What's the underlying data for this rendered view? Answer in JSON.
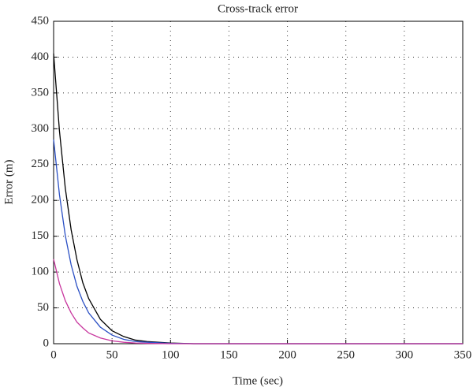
{
  "chart_data": {
    "type": "line",
    "title": "Cross-track error",
    "x_label": "Time (sec)",
    "y_label": "Error (m)",
    "x": [
      0,
      5,
      10,
      15,
      20,
      25,
      30,
      40,
      50,
      60,
      70,
      80,
      100,
      120,
      150,
      200,
      250,
      300,
      350
    ],
    "series": [
      {
        "color": "#000000",
        "values": [
          405,
          297,
          217,
          159,
          117,
          85,
          63,
          34,
          18,
          10,
          5,
          3,
          1,
          0,
          0,
          0,
          0,
          0,
          0
        ]
      },
      {
        "color": "#2a4fc4",
        "values": [
          285,
          208,
          151,
          110,
          80,
          59,
          43,
          23,
          12,
          6,
          3,
          2,
          0.5,
          0,
          0,
          0,
          0,
          0,
          0
        ]
      },
      {
        "color": "#c8369e",
        "values": [
          118,
          84,
          60,
          43,
          30,
          22,
          15,
          8,
          4,
          2,
          1,
          0.5,
          0,
          0,
          0,
          0,
          0,
          0,
          0
        ]
      }
    ],
    "xlim": [
      0,
      350
    ],
    "xticks": [
      0,
      50,
      100,
      150,
      200,
      250,
      300,
      350
    ],
    "ylim": [
      0,
      450
    ],
    "yticks": [
      0,
      50,
      100,
      150,
      200,
      250,
      300,
      350,
      400,
      450
    ],
    "grid": true
  }
}
